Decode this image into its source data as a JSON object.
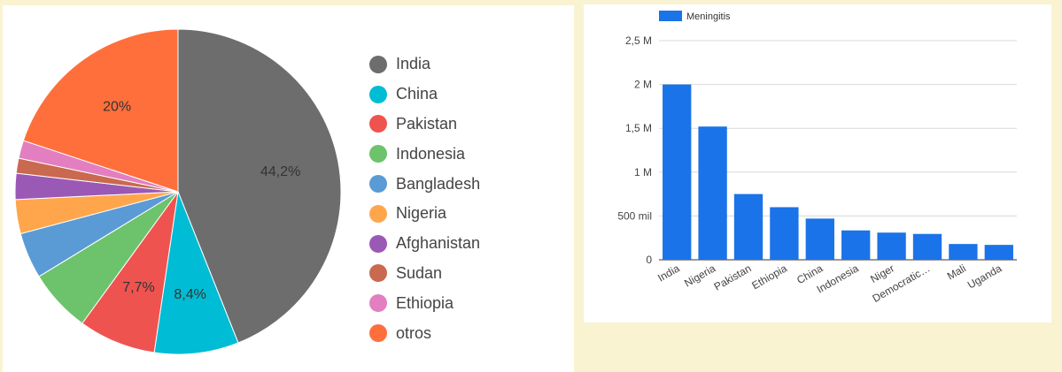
{
  "chart_data": [
    {
      "type": "pie",
      "legend_position": "right",
      "slices": [
        {
          "label": "India",
          "value": 44.2,
          "data_label": "44,2%",
          "color": "#6d6d6d"
        },
        {
          "label": "China",
          "value": 8.4,
          "data_label": "8,4%",
          "color": "#00bcd4"
        },
        {
          "label": "Pakistan",
          "value": 7.7,
          "data_label": "7,7%",
          "color": "#ef5350"
        },
        {
          "label": "Indonesia",
          "value": 6.3,
          "data_label": "",
          "color": "#6cc36c"
        },
        {
          "label": "Bangladesh",
          "value": 4.6,
          "data_label": "",
          "color": "#5b9bd5"
        },
        {
          "label": "Nigeria",
          "value": 3.4,
          "data_label": "",
          "color": "#ffa64d"
        },
        {
          "label": "Afghanistan",
          "value": 2.6,
          "data_label": "",
          "color": "#9b59b6"
        },
        {
          "label": "Sudan",
          "value": 1.5,
          "data_label": "",
          "color": "#c9694f"
        },
        {
          "label": "Ethiopia",
          "value": 1.8,
          "data_label": "",
          "color": "#e37fc0"
        },
        {
          "label": "otros",
          "value": 20.0,
          "data_label": "20%",
          "color": "#ff6f3c"
        }
      ]
    },
    {
      "type": "bar",
      "legend_position": "top-left",
      "series": [
        {
          "name": "Meningitis",
          "color": "#1a73e8",
          "values": [
            2000000,
            1520000,
            750000,
            600000,
            470000,
            335000,
            310000,
            295000,
            180000,
            170000
          ]
        }
      ],
      "categories": [
        "India",
        "Nigeria",
        "Pakistan",
        "Ethiopia",
        "China",
        "Indonesia",
        "Niger",
        "Democratic…",
        "Mali",
        "Uganda"
      ],
      "ylim": [
        0,
        2500000
      ],
      "yticks": [
        {
          "value": 0,
          "label": "0"
        },
        {
          "value": 500000,
          "label": "500 mil"
        },
        {
          "value": 1000000,
          "label": "1 M"
        },
        {
          "value": 1500000,
          "label": "1,5 M"
        },
        {
          "value": 2000000,
          "label": "2 M"
        },
        {
          "value": 2500000,
          "label": "2,5 M"
        }
      ],
      "grid": true
    }
  ]
}
